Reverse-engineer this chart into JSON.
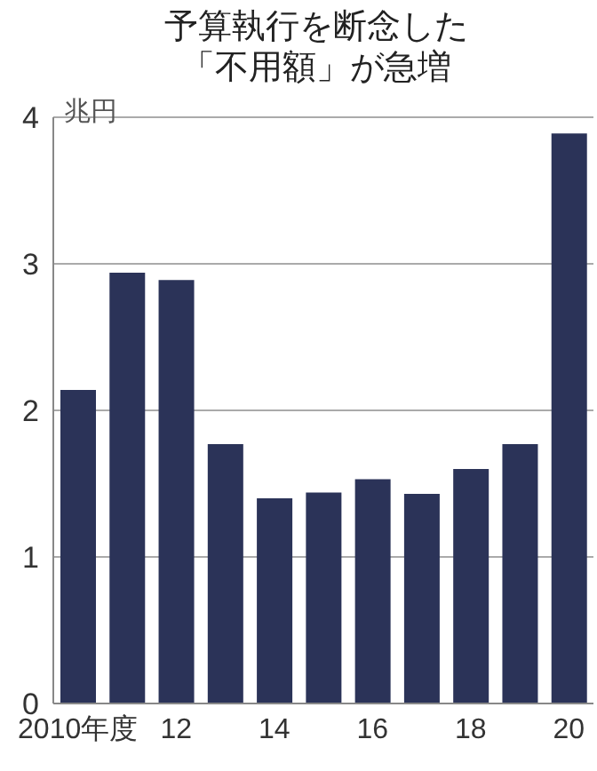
{
  "chart_data": {
    "type": "bar",
    "title": "予算執行を断念した「不用額」が急増",
    "ylabel": "兆円",
    "categories": [
      "2010年度",
      null,
      "12",
      null,
      "14",
      null,
      "16",
      null,
      "18",
      null,
      "20"
    ],
    "values": [
      2.14,
      2.94,
      2.89,
      1.77,
      1.4,
      1.44,
      1.53,
      1.43,
      1.6,
      1.77,
      3.89
    ],
    "color": "#2b3358",
    "ylim": [
      0,
      4
    ],
    "yticks": [
      0,
      1,
      2,
      3,
      4
    ],
    "grid": "y"
  }
}
